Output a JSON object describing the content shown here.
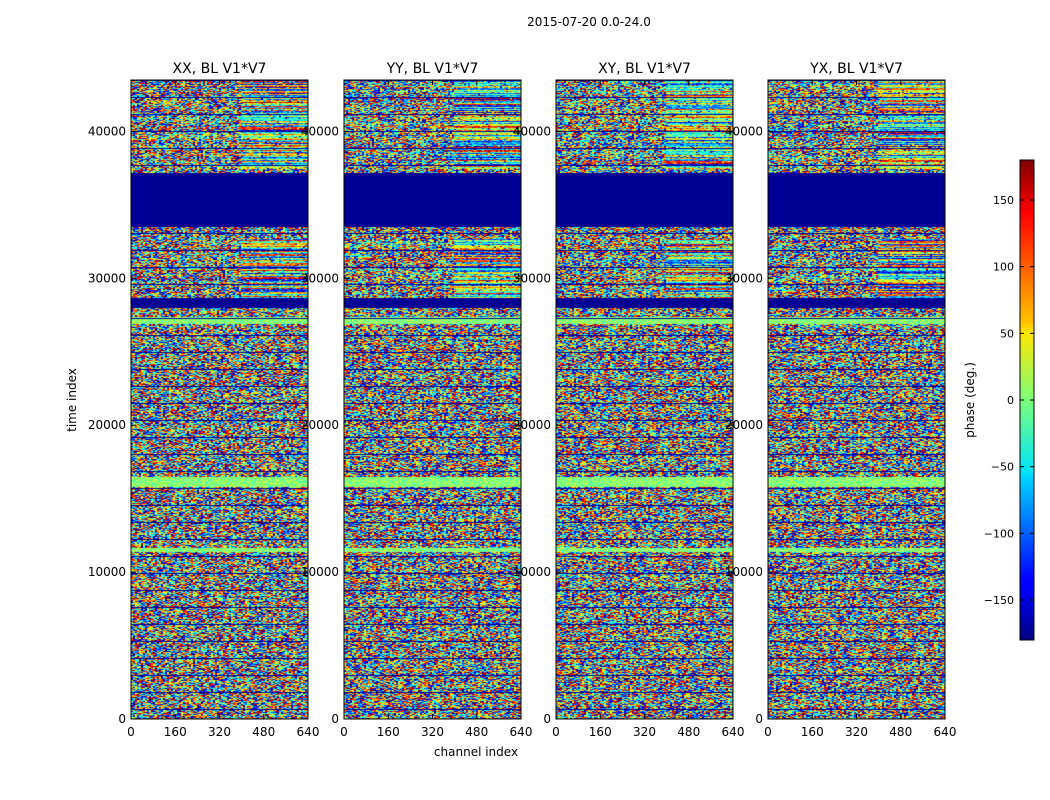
{
  "chart_data": {
    "type": "heatmap",
    "suptitle": "2015-07-20 0.0-24.0",
    "xlabel": "channel index",
    "ylabel": "time index",
    "xlim": [
      0,
      640
    ],
    "ylim": [
      0,
      43500
    ],
    "x_ticks": [
      0,
      160,
      320,
      480,
      640
    ],
    "x_tick_labels": [
      "0",
      "160",
      "320",
      "480",
      "640"
    ],
    "y_ticks": [
      0,
      10000,
      20000,
      30000,
      40000
    ],
    "y_tick_labels": [
      "0",
      "10000",
      "20000",
      "30000",
      "40000"
    ],
    "panels": [
      {
        "title": "XX, BL V1*V7"
      },
      {
        "title": "YY, BL V1*V7"
      },
      {
        "title": "XY, BL V1*V7"
      },
      {
        "title": "YX, BL V1*V7"
      }
    ],
    "colorbar": {
      "label": "phase (deg.)",
      "range": [
        -180,
        180
      ],
      "ticks": [
        -150,
        -100,
        -50,
        0,
        50,
        100,
        150
      ],
      "tick_labels": [
        "−150",
        "−100",
        "−50",
        "0",
        "50",
        "100",
        "150"
      ],
      "colormap": "jet"
    },
    "flagged_time_ranges": [
      [
        33500,
        37200
      ],
      [
        28000,
        28700
      ]
    ],
    "bright_band_time_ranges": [
      [
        15800,
        16500
      ],
      [
        11400,
        11700
      ],
      [
        26900,
        27400
      ]
    ]
  }
}
